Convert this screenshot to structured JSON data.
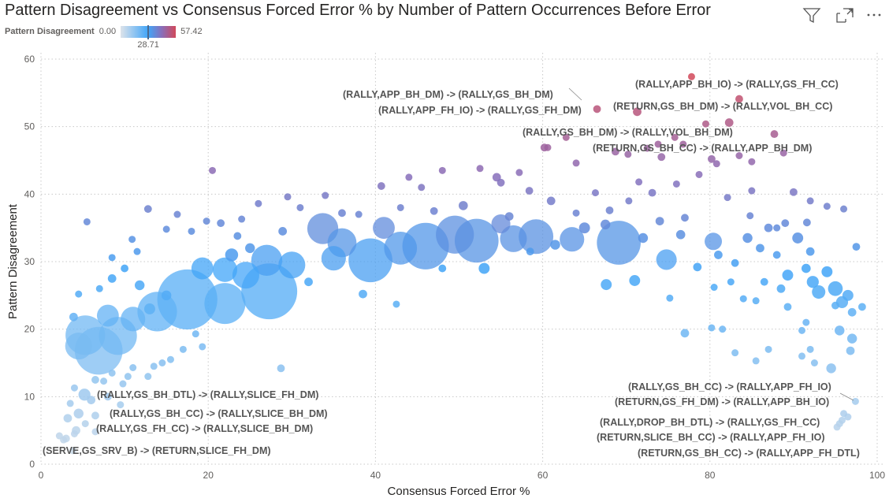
{
  "title": "Pattern Disagreement vs Consensus Forced Error % by Number of Pattern Occurrences Before Error",
  "header_icons": [
    "filter-icon",
    "focus-mode-icon",
    "more-options-icon"
  ],
  "legend": {
    "name": "Pattern Disagreement",
    "min": "0.00",
    "mid": "28.71",
    "max": "57.42"
  },
  "colors": {
    "low": "#d3dde8",
    "mid": "#41a5f8",
    "high": "#d1495a",
    "text": "#555555",
    "grid": "#c8c8c8"
  },
  "chart_data": {
    "type": "scatter",
    "title": "Pattern Disagreement vs Consensus Forced Error % by Number of Pattern Occurrences Before Error",
    "xlabel": "Consensus Forced Error %",
    "ylabel": "Pattern Disagreement",
    "size_field": "Number of Pattern Occurrences Before Error",
    "color_field": "Pattern Disagreement",
    "xlim": [
      0,
      100
    ],
    "ylim": [
      0,
      60
    ],
    "xticks": [
      "0",
      "20",
      "40",
      "60",
      "80",
      "100"
    ],
    "yticks": [
      "0",
      "10",
      "20",
      "30",
      "40",
      "50",
      "60"
    ],
    "grid": true,
    "points": [
      [
        77.8,
        57.4,
        4
      ],
      [
        66.5,
        52.6,
        5
      ],
      [
        71.3,
        52.2,
        6
      ],
      [
        83.5,
        54.1,
        5
      ],
      [
        82.3,
        50.6,
        6
      ],
      [
        79.5,
        50.4,
        4
      ],
      [
        87.7,
        48.9,
        5
      ],
      [
        75.8,
        48.4,
        4
      ],
      [
        76.8,
        47.4,
        4
      ],
      [
        60.2,
        46.9,
        5
      ],
      [
        60.6,
        46.9,
        4
      ],
      [
        62.8,
        48.4,
        4
      ],
      [
        68.7,
        46.3,
        5
      ],
      [
        72.5,
        46.8,
        4
      ],
      [
        74.2,
        45.5,
        5
      ],
      [
        80.2,
        45.2,
        5
      ],
      [
        83.5,
        45.7,
        4
      ],
      [
        85,
        44.8,
        4
      ],
      [
        88.8,
        46.1,
        4
      ],
      [
        70.2,
        45.9,
        4
      ],
      [
        73.8,
        47.4,
        4
      ],
      [
        78.7,
        42.9,
        4
      ],
      [
        80.8,
        44.5,
        4
      ],
      [
        64,
        44.6,
        4
      ],
      [
        57.2,
        43.2,
        4
      ],
      [
        55,
        41.7,
        5
      ],
      [
        54.5,
        42.5,
        6
      ],
      [
        52.5,
        43.8,
        4
      ],
      [
        48,
        43.5,
        4
      ],
      [
        44,
        42.5,
        4
      ],
      [
        40.7,
        41.2,
        5
      ],
      [
        45.5,
        41,
        4
      ],
      [
        58.4,
        40.5,
        5
      ],
      [
        61,
        39,
        6
      ],
      [
        66.3,
        40.2,
        4
      ],
      [
        71.5,
        41.8,
        4
      ],
      [
        76,
        41.5,
        4
      ],
      [
        70.3,
        39,
        4
      ],
      [
        73.1,
        40.2,
        5
      ],
      [
        82.1,
        39.5,
        4
      ],
      [
        85,
        40.5,
        4
      ],
      [
        90,
        40.3,
        5
      ],
      [
        92,
        39,
        4
      ],
      [
        94,
        38.2,
        4
      ],
      [
        96,
        37.8,
        4
      ],
      [
        89,
        35.7,
        5
      ],
      [
        84.8,
        36.8,
        4
      ],
      [
        77,
        36.5,
        5
      ],
      [
        68,
        37.6,
        5
      ],
      [
        64,
        37.2,
        4
      ],
      [
        56,
        36.7,
        6
      ],
      [
        50.5,
        38.3,
        7
      ],
      [
        47,
        37.5,
        5
      ],
      [
        43,
        38,
        4
      ],
      [
        38,
        37,
        4
      ],
      [
        36,
        37.2,
        5
      ],
      [
        34,
        39.8,
        4
      ],
      [
        31,
        38,
        4
      ],
      [
        29.5,
        39.6,
        4
      ],
      [
        26,
        38.6,
        4
      ],
      [
        24,
        36.3,
        4
      ],
      [
        21.5,
        35.7,
        5
      ],
      [
        20.5,
        43.5,
        3
      ],
      [
        19.8,
        36,
        4
      ],
      [
        18,
        34.5,
        3
      ],
      [
        16.3,
        37,
        3
      ],
      [
        12.8,
        37.8,
        5
      ],
      [
        5.5,
        35.9,
        3
      ],
      [
        15,
        34.8,
        3
      ],
      [
        10.9,
        33.3,
        3
      ],
      [
        8.5,
        30.6,
        4
      ],
      [
        11.5,
        31.5,
        3
      ],
      [
        17.5,
        24.4,
        300
      ],
      [
        27.3,
        25.6,
        260
      ],
      [
        22,
        23.8,
        140
      ],
      [
        6.9,
        16.8,
        190
      ],
      [
        5.3,
        19.1,
        130
      ],
      [
        13.9,
        22.6,
        130
      ],
      [
        9.2,
        19,
        120
      ],
      [
        4.5,
        17.5,
        60
      ],
      [
        27,
        30.2,
        80
      ],
      [
        39.4,
        30.2,
        160
      ],
      [
        46,
        32.3,
        180
      ],
      [
        52.1,
        33.1,
        160
      ],
      [
        69.1,
        32.8,
        160
      ],
      [
        59.2,
        33.7,
        100
      ],
      [
        33.7,
        34.9,
        80
      ],
      [
        30,
        29.5,
        60
      ],
      [
        49.5,
        34,
        120
      ],
      [
        43,
        32,
        90
      ],
      [
        36,
        32.8,
        70
      ],
      [
        22,
        28.8,
        50
      ],
      [
        24.5,
        28,
        60
      ],
      [
        19.3,
        29,
        40
      ],
      [
        8,
        22,
        40
      ],
      [
        11,
        21.5,
        50
      ],
      [
        35,
        30.5,
        50
      ],
      [
        56.5,
        33.4,
        60
      ],
      [
        63.5,
        33.3,
        50
      ],
      [
        74.8,
        30.3,
        35
      ],
      [
        80.4,
        33,
        25
      ],
      [
        41,
        35,
        40
      ],
      [
        55,
        35.6,
        30
      ],
      [
        3.9,
        21.8,
        6
      ],
      [
        4.5,
        25.2,
        3
      ],
      [
        7,
        26,
        4
      ],
      [
        8.5,
        27.5,
        6
      ],
      [
        10,
        29,
        5
      ],
      [
        11.8,
        26.5,
        8
      ],
      [
        13,
        23,
        10
      ],
      [
        15,
        25,
        8
      ],
      [
        22.8,
        31,
        14
      ],
      [
        25,
        32,
        8
      ],
      [
        23.5,
        33.8,
        5
      ],
      [
        28.9,
        34.5,
        6
      ],
      [
        32,
        27,
        6
      ],
      [
        38.5,
        25.2,
        6
      ],
      [
        42.5,
        23.7,
        4
      ],
      [
        48,
        29,
        5
      ],
      [
        53,
        29,
        10
      ],
      [
        58.5,
        31.5,
        5
      ],
      [
        61.5,
        32.5,
        8
      ],
      [
        65,
        35,
        10
      ],
      [
        67.5,
        35.5,
        8
      ],
      [
        72,
        33.5,
        8
      ],
      [
        74,
        36,
        6
      ],
      [
        76.5,
        34,
        7
      ],
      [
        78.5,
        29.2,
        6
      ],
      [
        71,
        27.2,
        10
      ],
      [
        67.6,
        26.6,
        10
      ],
      [
        75.2,
        24.6,
        4
      ],
      [
        77,
        19.4,
        6
      ],
      [
        81,
        31,
        6
      ],
      [
        83,
        29.8,
        5
      ],
      [
        84.5,
        33.5,
        8
      ],
      [
        86,
        32,
        6
      ],
      [
        87,
        35,
        6
      ],
      [
        88,
        31,
        5
      ],
      [
        89.3,
        28,
        10
      ],
      [
        90.5,
        33.5,
        10
      ],
      [
        91.5,
        29,
        7
      ],
      [
        92.3,
        27,
        12
      ],
      [
        93,
        25.5,
        15
      ],
      [
        94,
        28.5,
        10
      ],
      [
        95,
        26,
        18
      ],
      [
        95.8,
        24,
        12
      ],
      [
        96.5,
        25,
        10
      ],
      [
        97,
        22.5,
        6
      ],
      [
        98.2,
        23.3,
        5
      ],
      [
        97.5,
        32.2,
        5
      ],
      [
        92,
        31.5,
        6
      ],
      [
        91.6,
        35.8,
        5
      ],
      [
        88,
        35,
        4
      ],
      [
        86.5,
        27,
        5
      ],
      [
        88.5,
        26,
        6
      ],
      [
        89.3,
        23.3,
        5
      ],
      [
        85.5,
        24.2,
        4
      ],
      [
        84,
        24.5,
        3
      ],
      [
        82.5,
        27,
        4
      ],
      [
        80.5,
        26.2,
        4
      ],
      [
        91,
        19.8,
        4
      ],
      [
        92,
        17,
        3
      ],
      [
        91,
        16,
        3
      ],
      [
        94.5,
        14.2,
        8
      ],
      [
        92.5,
        15,
        3
      ],
      [
        96.8,
        16.8,
        6
      ],
      [
        97,
        18.6,
        8
      ],
      [
        95.5,
        19.8,
        8
      ],
      [
        95,
        23.5,
        5
      ],
      [
        91.5,
        21,
        4
      ],
      [
        87,
        17,
        3
      ],
      [
        85.5,
        15.3,
        3
      ],
      [
        83,
        16.5,
        3
      ],
      [
        81.5,
        20,
        3
      ],
      [
        80.2,
        20.2,
        3
      ],
      [
        28.7,
        14.2,
        5
      ],
      [
        19.3,
        17.4,
        3
      ],
      [
        18.5,
        19.3,
        4
      ],
      [
        17,
        17,
        3
      ],
      [
        15.5,
        15.5,
        3
      ],
      [
        14.5,
        15,
        3
      ],
      [
        13.5,
        14.5,
        3
      ],
      [
        12.8,
        13,
        3
      ],
      [
        11,
        14.3,
        3
      ],
      [
        10.4,
        13,
        4
      ],
      [
        9.8,
        11.9,
        3
      ],
      [
        8.5,
        13.5,
        3
      ],
      [
        7.5,
        12.3,
        4
      ],
      [
        6.5,
        12.5,
        5
      ],
      [
        5.2,
        10.3,
        12
      ],
      [
        4,
        11.3,
        4
      ],
      [
        3.5,
        9,
        4
      ],
      [
        4.5,
        7.5,
        8
      ],
      [
        6.5,
        7.2,
        5
      ],
      [
        6,
        9.5,
        6
      ],
      [
        8,
        10,
        5
      ],
      [
        9.5,
        8.8,
        4
      ],
      [
        3.2,
        6.8,
        6
      ],
      [
        4.2,
        5,
        6
      ],
      [
        5.3,
        6,
        4
      ],
      [
        2.2,
        4.2,
        3
      ],
      [
        3,
        3.8,
        5
      ],
      [
        4,
        4.5,
        4
      ],
      [
        6.5,
        4.8,
        4
      ],
      [
        3.8,
        2,
        3
      ],
      [
        2.7,
        3.6,
        3
      ],
      [
        97.4,
        9.3,
        3
      ],
      [
        96.5,
        7,
        4
      ],
      [
        96,
        7.5,
        4
      ],
      [
        95.8,
        6.5,
        4
      ],
      [
        95.5,
        6,
        4
      ],
      [
        95.2,
        5.5,
        3
      ]
    ],
    "annotations": [
      "(RALLY,APP_BH_IO) -> (RALLY,GS_FH_CC)",
      "(RALLY,APP_BH_DM) -> (RALLY,GS_BH_DM)",
      "(RALLY,APP_FH_IO) -> (RALLY,GS_FH_DM)",
      "(RETURN,GS_BH_DM) -> (RALLY,VOL_BH_CC)",
      "(RALLY,GS_BH_DM) -> (RALLY,VOL_BH_DM)",
      "(RETURN,GS_BH_CC) -> (RALLY,APP_BH_DM)",
      "(RALLY,GS_BH_DTL) -> (RALLY,SLICE_FH_DM)",
      "(RALLY,GS_BH_CC) -> (RALLY,SLICE_BH_DM)",
      "(RALLY,GS_FH_CC) -> (RALLY,SLICE_BH_DM)",
      "(SERVE,GS_SRV_B) -> (RETURN,SLICE_FH_DM)",
      "(RALLY,GS_BH_CC) -> (RALLY,APP_FH_IO)",
      "(RETURN,GS_FH_DM) -> (RALLY,APP_BH_IO)",
      "(RALLY,DROP_BH_DTL) -> (RALLY,GS_FH_CC)",
      "(RETURN,SLICE_BH_CC) -> (RALLY,APP_FH_IO)",
      "(RETURN,GS_BH_CC) -> (RALLY,APP_FH_DTL)"
    ]
  }
}
